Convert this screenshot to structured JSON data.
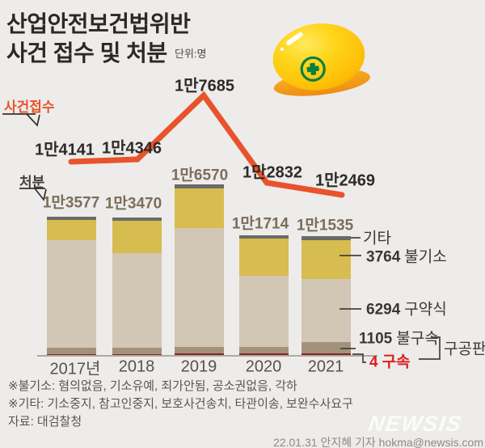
{
  "title": {
    "line1": "산업안전보건법위반",
    "line2": "사건 접수 및 처분",
    "unit": "단위:명"
  },
  "series_labels": {
    "line": "사건접수",
    "bar": "처분"
  },
  "chart_data": {
    "type": "bar",
    "subtype": "stacked-bar-with-line",
    "categories": [
      "2017년",
      "2018",
      "2019",
      "2020",
      "2021"
    ],
    "series": [
      {
        "name": "사건접수",
        "type": "line",
        "color": "#e8532c",
        "values": [
          14141,
          14346,
          17685,
          12832,
          12469
        ],
        "labels": [
          "1만4141",
          "1만4346",
          "1만7685",
          "1만2832",
          "1만2469"
        ]
      },
      {
        "name": "처분",
        "type": "stacked-bar",
        "values": [
          13577,
          13470,
          16570,
          11714,
          11535
        ],
        "labels": [
          "1만3577",
          "1만3470",
          "1만6570",
          "1만1714",
          "1만1535"
        ]
      }
    ],
    "breakdown_2021": [
      {
        "label": "구속",
        "value": 4,
        "color": "#8d211c",
        "label_color": "#e01d1d"
      },
      {
        "label": "불구속",
        "value": 1105,
        "color": "#a3927a"
      },
      {
        "label": "구약식",
        "value": 6294,
        "color": "#d2c6b4"
      },
      {
        "label": "불기소",
        "value": 3764,
        "color": "#d7bc4f"
      },
      {
        "label": "기타",
        "color": "#6a6a68"
      }
    ],
    "group_label": "구공판",
    "axis_color": "#97948f",
    "legend_position": "right-of-2021-bar",
    "grid": false
  },
  "footnotes": [
    "※불기소: 혐의없음, 기소유예, 죄가안됨, 공소권없음, 각하",
    "※기타: 기소중지, 참고인중지, 보호사건송치, 타관이송, 보완수사요구"
  ],
  "source": "자료: 대검찰청",
  "credit": "22.01.31 안지혜 기자 hokma@newsis.com",
  "logo": "NEWSIS",
  "icons": {
    "helmet": "safety-helmet-icon",
    "badge": "green-cross-icon"
  }
}
